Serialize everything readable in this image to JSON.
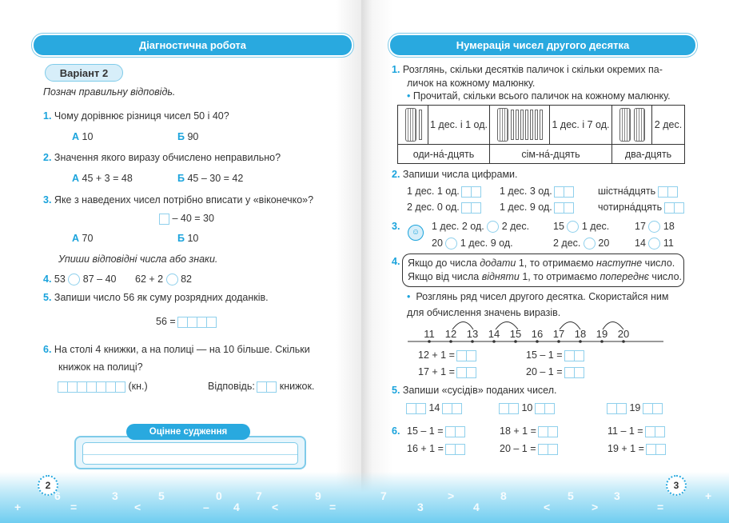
{
  "left": {
    "header": "Діагностична робота",
    "variant": "Варіант 2",
    "instruction": "Познач правильну відповідь.",
    "q1": {
      "n": "1.",
      "text": "Чому дорівнює різниця чисел 50 і 40?",
      "a_label": "А",
      "a": "10",
      "b_label": "Б",
      "b": "90"
    },
    "q2": {
      "n": "2.",
      "text": "Значення якого виразу обчислено неправильно?",
      "a_label": "А",
      "a": "45 + 3 = 48",
      "b_label": "Б",
      "b": "45 – 30 = 42"
    },
    "q3": {
      "n": "3.",
      "text": "Яке з наведених чисел потрібно вписати у «віконечко»?",
      "eq": "– 40 = 30",
      "a_label": "А",
      "a": "70",
      "b_label": "Б",
      "b": "10"
    },
    "instruction2": "Упиши відповідні числа або знаки.",
    "q4": {
      "n": "4.",
      "p1a": "53",
      "p1b": "87 – 40",
      "p2a": "62 + 2",
      "p2b": "82"
    },
    "q5": {
      "n": "5.",
      "text": "Запиши число 56 як суму розрядних доданків.",
      "eq": "56 ="
    },
    "q6": {
      "n": "6.",
      "text1": "На столі 4 книжки, а на полиці — на 10 більше. Скільки",
      "text2": "книжок на полиці?",
      "unit": "(кн.)",
      "answer": "Відповідь:",
      "answer_unit": "книжок."
    },
    "judgement": "Оцінне судження",
    "page_number": "2"
  },
  "right": {
    "header": "Нумерація чисел другого десятка",
    "q1": {
      "n": "1.",
      "text1": "Розглянь, скільки десятків паличок і скільки окремих па-",
      "text2": "личок на кожному малюнку.",
      "bullet": "Прочитай, скільки всього паличок на кожному малюнку.",
      "cells": [
        "1 дес. і 1 од.",
        "1 дес. і 7 од.",
        "2 дес."
      ],
      "words": [
        "оди-на́-дцять",
        "сім-на́-дцять",
        "два-дцять"
      ]
    },
    "q2": {
      "n": "2.",
      "text": "Запиши числа цифрами.",
      "items": [
        "1 дес. 1 од.",
        "1 дес. 3 од.",
        "шістна́дцять",
        "2 дес. 0 од.",
        "1 дес. 9 од.",
        "чотирна́дцять"
      ]
    },
    "q3": {
      "n": "3.",
      "items": [
        [
          "1 дес. 2 од.",
          "2 дес."
        ],
        [
          "15",
          "1 дес."
        ],
        [
          "17",
          "18"
        ],
        [
          "20",
          "1 дес. 9 од."
        ],
        [
          "2 дес.",
          "20"
        ],
        [
          "14",
          "11"
        ]
      ]
    },
    "q4": {
      "n": "4.",
      "l1a": "Якщо до числа ",
      "l1b": "додати",
      "l1c": " 1, то отримаємо ",
      "l1d": "наступне",
      "l1e": " число.",
      "l2a": "Якщо від числа ",
      "l2b": "відняти",
      "l2c": " 1, то отримаємо ",
      "l2d": "попереднє",
      "l2e": " число.",
      "bullet1": "Розглянь ряд чисел другого десятка. Скористайся ним",
      "bullet2": "для обчислення значень виразів.",
      "numberline": [
        "11",
        "12",
        "13",
        "14",
        "15",
        "16",
        "17",
        "18",
        "19",
        "20"
      ],
      "eqs": [
        "12 + 1 =",
        "15 – 1 =",
        "17 + 1 =",
        "20 – 1 ="
      ]
    },
    "q5": {
      "n": "5.",
      "text": "Запиши «сусідів» поданих чисел.",
      "numbers": [
        "14",
        "10",
        "19"
      ]
    },
    "q6": {
      "n": "6.",
      "eqs": [
        "15 – 1 =",
        "18 + 1 =",
        "11 – 1 =",
        "16 + 1 =",
        "20 – 1 =",
        "19 + 1 ="
      ]
    },
    "page_number": "3"
  },
  "colors": {
    "accent": "#29a9df",
    "number": "#1aa3dc",
    "cell_border": "#8fd0ec"
  },
  "footer_symbols": [
    "+",
    "6",
    "=",
    "3",
    "<",
    "5",
    "–",
    "0",
    "4",
    "7",
    "<",
    "9",
    "=",
    "7",
    "3",
    ">",
    "4",
    "8",
    "<",
    "5",
    ">",
    "3",
    "=",
    "+"
  ]
}
